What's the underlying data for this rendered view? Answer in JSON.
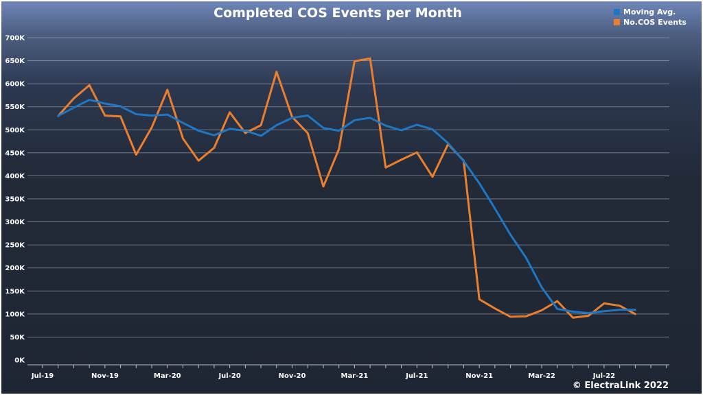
{
  "chart_data": {
    "type": "line",
    "title": "Completed COS Events per Month",
    "x": [
      "2019-08",
      "2019-09",
      "2019-10",
      "2019-11",
      "2019-12",
      "2020-01",
      "2020-02",
      "2020-03",
      "2020-04",
      "2020-05",
      "2020-06",
      "2020-07",
      "2020-08",
      "2020-09",
      "2020-10",
      "2020-11",
      "2020-12",
      "2021-01",
      "2021-02",
      "2021-03",
      "2021-04",
      "2021-05",
      "2021-06",
      "2021-07",
      "2021-08",
      "2021-09",
      "2021-10",
      "2021-11",
      "2021-12",
      "2022-01",
      "2022-02",
      "2022-03",
      "2022-04",
      "2022-05",
      "2022-06",
      "2022-07",
      "2022-08",
      "2022-09"
    ],
    "x_ticks": [
      "Jul-19",
      "Nov-19",
      "Mar-20",
      "Jul-20",
      "Nov-20",
      "Mar-21",
      "Jul-21",
      "Nov-21",
      "Mar-22",
      "Jul-22"
    ],
    "y_ticks": [
      "0K",
      "50K",
      "100K",
      "150K",
      "200K",
      "250K",
      "300K",
      "350K",
      "400K",
      "450K",
      "500K",
      "550K",
      "600K",
      "650K",
      "700K"
    ],
    "ylim": [
      0,
      700000
    ],
    "grid": true,
    "legend_position": "top-right",
    "series": [
      {
        "name": "Moving Avg.",
        "color": "#1f77c4",
        "values": [
          530000,
          548000,
          565000,
          557000,
          551000,
          534000,
          531000,
          533000,
          515000,
          498000,
          488000,
          502000,
          498000,
          487000,
          510000,
          526000,
          531000,
          504000,
          498000,
          521000,
          526000,
          509000,
          499000,
          511000,
          501000,
          471000,
          432000,
          384000,
          329000,
          272000,
          222000,
          158000,
          111000,
          105000,
          102000,
          106000,
          109000,
          109000
        ]
      },
      {
        "name": "No.COS Events",
        "color": "#ec7f2c",
        "values": [
          530000,
          568000,
          597000,
          531000,
          529000,
          446000,
          505000,
          587000,
          481000,
          433000,
          461000,
          538000,
          493000,
          510000,
          626000,
          528000,
          493000,
          377000,
          458000,
          649000,
          655000,
          418000,
          435000,
          451000,
          398000,
          469000,
          433000,
          132000,
          112000,
          94000,
          95000,
          108000,
          128000,
          92000,
          96000,
          123000,
          118000,
          100000
        ]
      }
    ]
  },
  "legend": [
    {
      "label": "Moving Avg.",
      "color": "#1f77c4"
    },
    {
      "label": "No.COS Events",
      "color": "#ec7f2c"
    }
  ],
  "copyright": "© ElectraLink 2022"
}
